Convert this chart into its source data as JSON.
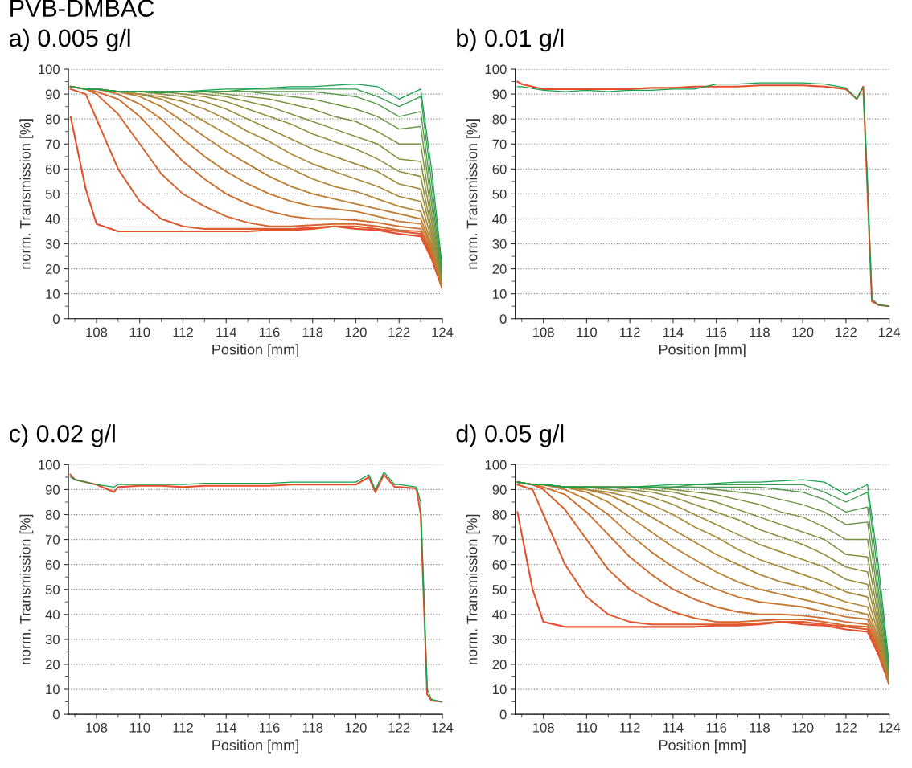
{
  "chart_data": [
    {
      "type": "line",
      "title": "a) 0.005 g/l",
      "annotations": [
        "PVB-DMBAC"
      ],
      "xlabel": "Position [mm]",
      "ylabel": "norm. Transmission [%]",
      "xlim": [
        106.7,
        124
      ],
      "xticks": [
        {
          "value": 107,
          "label": null
        },
        108,
        {
          "value": 109,
          "label": null
        },
        110,
        {
          "value": 111,
          "label": null
        },
        112,
        {
          "value": 113,
          "label": null
        },
        114,
        {
          "value": 115,
          "label": null
        },
        116,
        {
          "value": 117,
          "label": null
        },
        118,
        {
          "value": 119,
          "label": null
        },
        120,
        {
          "value": 121,
          "label": null
        },
        122,
        {
          "value": 123,
          "label": null
        },
        124
      ],
      "ylim": [
        0,
        100
      ],
      "yticks": [
        0,
        {
          "value": 5,
          "label": null
        },
        10,
        {
          "value": 15,
          "label": null
        },
        20,
        {
          "value": 25,
          "label": null
        },
        30,
        {
          "value": 35,
          "label": null
        },
        40,
        {
          "value": 45,
          "label": null
        },
        50,
        {
          "value": 55,
          "label": null
        },
        60,
        {
          "value": 65,
          "label": null
        },
        70,
        {
          "value": 75,
          "label": null
        },
        80,
        {
          "value": 85,
          "label": null
        },
        90,
        {
          "value": 95,
          "label": null
        },
        100
      ],
      "grid": "y",
      "line_style": "solid",
      "x": [
        106.8,
        107.5,
        108,
        109,
        110,
        111,
        112,
        113,
        114,
        115,
        116,
        117,
        118,
        119,
        120,
        121,
        122,
        123,
        123.5,
        124
      ],
      "series": [
        {
          "color": "#e84c2c",
          "values": [
            81,
            52,
            38,
            35,
            35,
            35,
            35,
            35,
            35,
            35,
            35.5,
            35.5,
            36,
            37,
            36,
            35.5,
            34,
            33,
            24,
            12
          ]
        },
        {
          "color": "#e0582c",
          "values": [
            92,
            90,
            80,
            60,
            47,
            40,
            37,
            36,
            36,
            36,
            36,
            36,
            36.5,
            37,
            37,
            36,
            35,
            34,
            25,
            12
          ]
        },
        {
          "color": "#d8642e",
          "values": [
            93,
            92,
            90,
            82,
            70,
            58,
            50,
            45,
            41,
            38.5,
            37,
            37,
            37.5,
            38,
            38,
            37,
            35.5,
            35,
            26,
            12
          ]
        },
        {
          "color": "#cf6e30",
          "values": [
            93,
            92,
            91,
            88,
            81,
            72,
            63,
            56,
            50,
            46,
            43,
            41,
            40,
            40,
            39.5,
            38.5,
            37,
            36,
            27,
            13
          ]
        },
        {
          "color": "#c67832",
          "values": [
            93,
            92,
            92,
            90,
            86,
            80,
            72,
            65,
            59,
            54,
            50,
            47,
            45,
            44,
            43,
            41,
            39,
            38,
            28,
            13
          ]
        },
        {
          "color": "#bc8034",
          "values": [
            93,
            92,
            92,
            91,
            89,
            85,
            79,
            73,
            67,
            62,
            57,
            53,
            50,
            48,
            46,
            44,
            42,
            40,
            29,
            13
          ]
        },
        {
          "color": "#b28636",
          "values": [
            93,
            92,
            92,
            91,
            90,
            88,
            84,
            79,
            74,
            69,
            64,
            60,
            56,
            53,
            51,
            48,
            45,
            43,
            30,
            13
          ]
        },
        {
          "color": "#a88a38",
          "values": [
            93,
            92,
            92,
            91,
            90,
            89,
            87,
            84,
            80,
            75,
            71,
            66,
            62,
            59,
            56,
            53,
            49,
            47,
            32,
            14
          ]
        },
        {
          "color": "#9e8c3a",
          "values": [
            93,
            92,
            92,
            91,
            91,
            90,
            89,
            87,
            84,
            80,
            76,
            72,
            68,
            65,
            62,
            59,
            54,
            52,
            34,
            14
          ]
        },
        {
          "color": "#938e3c",
          "values": [
            93,
            92,
            92,
            91,
            91,
            91,
            90,
            89,
            87,
            84,
            81,
            78,
            74,
            71,
            68,
            64,
            59,
            57,
            36,
            14
          ]
        },
        {
          "color": "#87903e",
          "values": [
            93,
            92,
            92,
            91,
            91,
            91,
            91,
            90,
            89,
            87,
            85,
            82,
            79,
            76,
            73,
            70,
            64,
            63,
            39,
            15
          ]
        },
        {
          "color": "#7a9240",
          "values": [
            93,
            92,
            92,
            91,
            91,
            91,
            91,
            91,
            90,
            89,
            88,
            86,
            84,
            81,
            79,
            75,
            70,
            70,
            42,
            15
          ]
        },
        {
          "color": "#6a9544",
          "values": [
            93,
            92,
            92,
            91,
            91,
            91,
            91,
            91,
            91,
            91,
            90,
            89,
            88,
            86,
            84,
            81,
            76,
            77,
            46,
            16
          ]
        },
        {
          "color": "#529848",
          "values": [
            93,
            92,
            92,
            91,
            91,
            91,
            91,
            91,
            91,
            91,
            91,
            91,
            91,
            90,
            89,
            86,
            81,
            83,
            50,
            17
          ]
        },
        {
          "color": "#369c4c",
          "values": [
            93,
            92,
            92,
            91,
            91,
            91,
            91,
            91,
            91,
            92,
            92,
            92,
            92,
            92,
            92,
            89,
            85,
            89,
            55,
            18
          ]
        },
        {
          "color": "#12a24c",
          "values": [
            93,
            92,
            92,
            91,
            91,
            90.5,
            91,
            91.5,
            92,
            92,
            92.5,
            93,
            93,
            93.5,
            94,
            93,
            88,
            92,
            60,
            20
          ]
        }
      ]
    },
    {
      "type": "line",
      "title": "b) 0.01 g/l",
      "xlabel": "Position [mm]",
      "ylabel": "norm. Transmission [%]",
      "xlim": [
        106.7,
        124
      ],
      "xticks": [
        {
          "value": 107,
          "label": null
        },
        108,
        {
          "value": 109,
          "label": null
        },
        110,
        {
          "value": 111,
          "label": null
        },
        112,
        {
          "value": 113,
          "label": null
        },
        114,
        {
          "value": 115,
          "label": null
        },
        116,
        {
          "value": 117,
          "label": null
        },
        118,
        {
          "value": 119,
          "label": null
        },
        120,
        {
          "value": 121,
          "label": null
        },
        122,
        {
          "value": 123,
          "label": null
        },
        124
      ],
      "ylim": [
        0,
        100
      ],
      "yticks": [
        0,
        {
          "value": 5,
          "label": null
        },
        10,
        {
          "value": 15,
          "label": null
        },
        20,
        {
          "value": 25,
          "label": null
        },
        30,
        {
          "value": 35,
          "label": null
        },
        40,
        {
          "value": 45,
          "label": null
        },
        50,
        {
          "value": 55,
          "label": null
        },
        60,
        {
          "value": 65,
          "label": null
        },
        70,
        {
          "value": 75,
          "label": null
        },
        80,
        {
          "value": 85,
          "label": null
        },
        90,
        {
          "value": 95,
          "label": null
        },
        100
      ],
      "grid": "y",
      "line_style": "solid",
      "x": [
        106.8,
        107,
        108,
        109,
        110,
        111,
        112,
        113,
        114,
        115,
        116,
        117,
        118,
        119,
        120,
        121,
        122,
        122.5,
        122.8,
        123,
        123.2,
        123.5,
        124
      ],
      "series": [
        {
          "color": "#e84c2c",
          "values": [
            95,
            94,
            92,
            92,
            92,
            92,
            92,
            92.5,
            92.5,
            93,
            93,
            93,
            93.5,
            93.5,
            93.5,
            93,
            92,
            88,
            93,
            50,
            7,
            5.5,
            5
          ]
        },
        {
          "color": "#12a24c",
          "values": [
            93,
            93,
            91.5,
            91,
            91.5,
            91,
            91.5,
            91.5,
            92,
            92,
            94,
            94,
            94.5,
            94.5,
            94.5,
            94,
            92.5,
            88,
            93,
            55,
            8,
            5.5,
            5
          ]
        }
      ]
    },
    {
      "type": "line",
      "title": "c) 0.02 g/l",
      "xlabel": "Position [mm]",
      "ylabel": "norm. Transmission [%]",
      "xlim": [
        106.7,
        124
      ],
      "xticks": [
        {
          "value": 107,
          "label": null
        },
        108,
        {
          "value": 109,
          "label": null
        },
        110,
        {
          "value": 111,
          "label": null
        },
        112,
        {
          "value": 113,
          "label": null
        },
        114,
        {
          "value": 115,
          "label": null
        },
        116,
        {
          "value": 117,
          "label": null
        },
        118,
        {
          "value": 119,
          "label": null
        },
        120,
        {
          "value": 121,
          "label": null
        },
        122,
        {
          "value": 123,
          "label": null
        },
        124
      ],
      "ylim": [
        0,
        100
      ],
      "yticks": [
        0,
        {
          "value": 5,
          "label": null
        },
        10,
        {
          "value": 15,
          "label": null
        },
        20,
        {
          "value": 25,
          "label": null
        },
        30,
        {
          "value": 35,
          "label": null
        },
        40,
        {
          "value": 45,
          "label": null
        },
        50,
        {
          "value": 55,
          "label": null
        },
        60,
        {
          "value": 65,
          "label": null
        },
        70,
        {
          "value": 75,
          "label": null
        },
        80,
        {
          "value": 85,
          "label": null
        },
        90,
        {
          "value": 95,
          "label": null
        },
        100
      ],
      "grid": "y",
      "line_style": "solid",
      "x": [
        106.8,
        107,
        108,
        108.8,
        109,
        110,
        111,
        112,
        113,
        114,
        115,
        116,
        117,
        118,
        119,
        120,
        120.6,
        120.9,
        121.3,
        121.8,
        122,
        122.8,
        123,
        123.3,
        123.5,
        124
      ],
      "series": [
        {
          "color": "#e84c2c",
          "values": [
            96,
            94,
            92,
            89,
            91,
            91.5,
            91.5,
            91,
            91.5,
            91.5,
            91.5,
            91.5,
            92,
            92,
            92,
            92,
            95,
            89,
            96,
            91,
            91,
            90.5,
            80,
            8,
            5.5,
            5
          ]
        },
        {
          "color": "#12a24c",
          "values": [
            95,
            94,
            92,
            91,
            92,
            92,
            92,
            92,
            92.5,
            92.5,
            92.5,
            92.5,
            93,
            93,
            93,
            93,
            96,
            90,
            97,
            92,
            92,
            91,
            85,
            10,
            6,
            5
          ]
        }
      ]
    },
    {
      "type": "line",
      "title": "d) 0.05 g/l",
      "xlabel": "Position [mm]",
      "ylabel": "norm. Transmission [%]",
      "xlim": [
        106.7,
        124
      ],
      "xticks": [
        {
          "value": 107,
          "label": null
        },
        108,
        {
          "value": 109,
          "label": null
        },
        110,
        {
          "value": 111,
          "label": null
        },
        112,
        {
          "value": 113,
          "label": null
        },
        114,
        {
          "value": 115,
          "label": null
        },
        116,
        {
          "value": 117,
          "label": null
        },
        118,
        {
          "value": 119,
          "label": null
        },
        120,
        {
          "value": 121,
          "label": null
        },
        122,
        {
          "value": 123,
          "label": null
        },
        124
      ],
      "ylim": [
        0,
        100
      ],
      "yticks": [
        0,
        {
          "value": 5,
          "label": null
        },
        10,
        {
          "value": 15,
          "label": null
        },
        20,
        {
          "value": 25,
          "label": null
        },
        30,
        {
          "value": 35,
          "label": null
        },
        40,
        {
          "value": 45,
          "label": null
        },
        50,
        {
          "value": 55,
          "label": null
        },
        60,
        {
          "value": 65,
          "label": null
        },
        70,
        {
          "value": 75,
          "label": null
        },
        80,
        {
          "value": 85,
          "label": null
        },
        90,
        {
          "value": 95,
          "label": null
        },
        100
      ],
      "grid": "y",
      "line_style": "solid",
      "x": [
        106.8,
        107.5,
        108,
        109,
        110,
        111,
        112,
        113,
        114,
        115,
        116,
        117,
        118,
        119,
        120,
        121,
        122,
        123,
        123.5,
        124
      ],
      "series": [
        {
          "color": "#e84c2c",
          "values": [
            81,
            50,
            37,
            35,
            35,
            35,
            35,
            35,
            35,
            35,
            35.5,
            35.5,
            36,
            37,
            36,
            35.5,
            34,
            33,
            24,
            12
          ]
        },
        {
          "color": "#e0582c",
          "values": [
            92,
            90,
            80,
            60,
            47,
            40,
            37,
            36,
            36,
            36,
            36,
            36,
            36.5,
            37,
            37,
            36,
            35,
            34,
            25,
            12
          ]
        },
        {
          "color": "#d8642e",
          "values": [
            93,
            92,
            90,
            82,
            70,
            58,
            50,
            45,
            41,
            38.5,
            37,
            37,
            37.5,
            38,
            38,
            37,
            35.5,
            35,
            26,
            12
          ]
        },
        {
          "color": "#cf6e30",
          "values": [
            93,
            92,
            91,
            88,
            81,
            72,
            63,
            56,
            50,
            46,
            43,
            41,
            40,
            40,
            39.5,
            38.5,
            37,
            36,
            27,
            13
          ]
        },
        {
          "color": "#c67832",
          "values": [
            93,
            92,
            92,
            90,
            86,
            80,
            72,
            65,
            59,
            54,
            50,
            47,
            45,
            44,
            43,
            41,
            39,
            38,
            28,
            13
          ]
        },
        {
          "color": "#bc8034",
          "values": [
            93,
            92,
            92,
            91,
            89,
            85,
            79,
            73,
            67,
            62,
            57,
            53,
            50,
            48,
            46,
            44,
            42,
            40,
            29,
            13
          ]
        },
        {
          "color": "#b28636",
          "values": [
            93,
            92,
            92,
            91,
            90,
            88,
            84,
            79,
            74,
            69,
            64,
            60,
            56,
            53,
            51,
            48,
            45,
            43,
            30,
            13
          ]
        },
        {
          "color": "#a88a38",
          "values": [
            93,
            92,
            92,
            91,
            90,
            89,
            87,
            84,
            80,
            75,
            71,
            66,
            62,
            59,
            56,
            53,
            49,
            47,
            32,
            14
          ]
        },
        {
          "color": "#9e8c3a",
          "values": [
            93,
            92,
            92,
            91,
            91,
            90,
            89,
            87,
            84,
            80,
            76,
            72,
            68,
            65,
            62,
            59,
            54,
            52,
            34,
            14
          ]
        },
        {
          "color": "#938e3c",
          "values": [
            93,
            92,
            92,
            91,
            91,
            91,
            90,
            89,
            87,
            84,
            81,
            78,
            74,
            71,
            68,
            64,
            59,
            57,
            36,
            14
          ]
        },
        {
          "color": "#87903e",
          "values": [
            93,
            92,
            92,
            91,
            91,
            91,
            91,
            90,
            89,
            87,
            85,
            82,
            79,
            76,
            73,
            70,
            64,
            63,
            39,
            15
          ]
        },
        {
          "color": "#7a9240",
          "values": [
            93,
            92,
            92,
            91,
            91,
            91,
            91,
            91,
            90,
            89,
            88,
            86,
            84,
            81,
            79,
            75,
            70,
            70,
            42,
            15
          ]
        },
        {
          "color": "#6a9544",
          "values": [
            93,
            92,
            92,
            91,
            91,
            91,
            91,
            91,
            91,
            91,
            90,
            89,
            88,
            86,
            84,
            81,
            76,
            77,
            46,
            16
          ]
        },
        {
          "color": "#529848",
          "values": [
            93,
            92,
            92,
            91,
            91,
            91,
            91,
            91,
            91,
            91,
            91,
            91,
            91,
            90,
            89,
            86,
            81,
            83,
            50,
            17
          ]
        },
        {
          "color": "#369c4c",
          "values": [
            93,
            92,
            92,
            91,
            91,
            91,
            91,
            91,
            91,
            92,
            92,
            92,
            92,
            92,
            92,
            89,
            85,
            89,
            55,
            18
          ]
        },
        {
          "color": "#12a24c",
          "values": [
            93,
            92,
            92,
            91,
            91,
            90.5,
            91,
            91.5,
            92,
            92,
            92.5,
            93,
            93,
            93.5,
            94,
            93,
            88,
            92,
            60,
            20
          ]
        }
      ]
    }
  ]
}
